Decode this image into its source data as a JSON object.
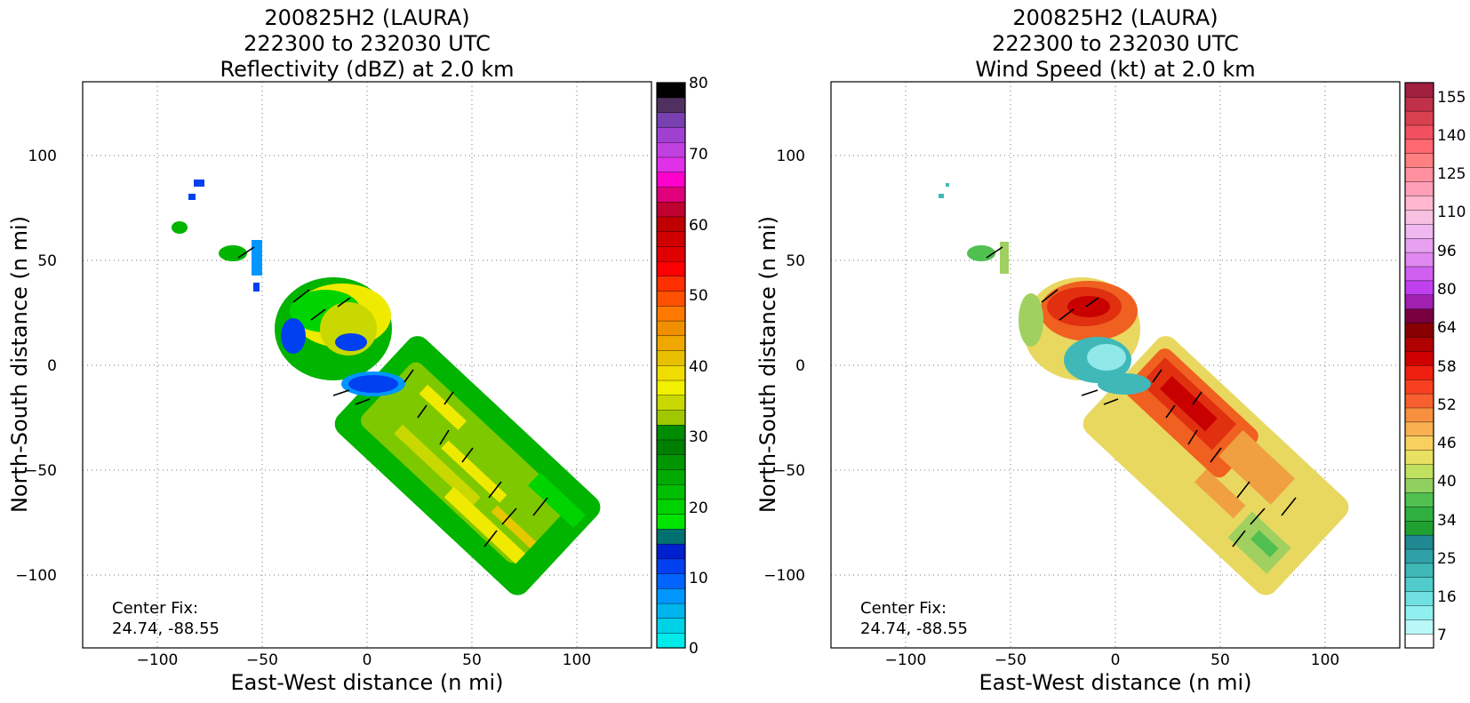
{
  "panels": [
    {
      "title_lines": [
        "200825H2 (LAURA)",
        "222300 to 232030 UTC",
        "Reflectivity (dBZ) at 2.0 km"
      ],
      "xlabel": "East-West distance (n mi)",
      "ylabel": "North-South distance (n mi)",
      "xticks": [
        "−100",
        "−50",
        "0",
        "50",
        "100"
      ],
      "yticks": [
        "100",
        "50",
        "0",
        "−50",
        "−100"
      ],
      "center_fix_label": "Center Fix:",
      "center_fix_value": "24.74, -88.55",
      "colorbar_labels": [
        "80",
        "70",
        "60",
        "50",
        "40",
        "30",
        "20",
        "10",
        "0"
      ],
      "colorbar_colors": [
        "#00eaea",
        "#00d2e6",
        "#00b4ee",
        "#0096ff",
        "#0064ff",
        "#0040f0",
        "#0020d0",
        "#007070",
        "#00e400",
        "#00d200",
        "#00be00",
        "#00aa00",
        "#009600",
        "#007e00",
        "#008c00",
        "#a0c800",
        "#c8d800",
        "#f0f000",
        "#f0dc00",
        "#e8c000",
        "#f0a800",
        "#f09000",
        "#ff7800",
        "#ff5000",
        "#ff3000",
        "#ff0000",
        "#e00000",
        "#d00000",
        "#c00000",
        "#c00030",
        "#e0007c",
        "#ff00cc",
        "#e030e8",
        "#c040e0",
        "#a040d0",
        "#7840b0",
        "#503060",
        "#000000"
      ],
      "data_colors": [
        "#00b400",
        "#00d400",
        "#7ec800",
        "#c8d800",
        "#f0ea00",
        "#e6c800",
        "#0040f0",
        "#0096ff",
        "#0080c0"
      ],
      "barb_color": "#000000"
    },
    {
      "title_lines": [
        "200825H2 (LAURA)",
        "222300 to 232030 UTC",
        "Wind Speed (kt) at 2.0 km"
      ],
      "xlabel": "East-West distance (n mi)",
      "ylabel": "North-South distance (n mi)",
      "xticks": [
        "−100",
        "−50",
        "0",
        "50",
        "100"
      ],
      "yticks": [
        "100",
        "50",
        "0",
        "−50",
        "−100"
      ],
      "center_fix_label": "Center Fix:",
      "center_fix_value": "24.74, -88.55",
      "colorbar_labels": [
        "155",
        "140",
        "125",
        "110",
        "96",
        "80",
        "64",
        "58",
        "52",
        "46",
        "40",
        "34",
        "25",
        "16",
        "7"
      ],
      "colorbar_colors": [
        "#ffffff",
        "#b8f8f8",
        "#90f0f0",
        "#70e0e0",
        "#50cccc",
        "#40b8b8",
        "#30a0a8",
        "#208890",
        "#20a030",
        "#30b040",
        "#50c050",
        "#90d060",
        "#c0e060",
        "#e8e060",
        "#f8d060",
        "#f8b050",
        "#f89040",
        "#f86030",
        "#f84020",
        "#f02010",
        "#d00000",
        "#b00000",
        "#880000",
        "#780040",
        "#a020b0",
        "#c040f0",
        "#d060f0",
        "#e088f0",
        "#e8a0f0",
        "#f0b8f0",
        "#f8c0e0",
        "#ffb8d0",
        "#ffa0b8",
        "#ff90a0",
        "#ff8080",
        "#ff6870",
        "#f05060",
        "#d84050",
        "#c03048",
        "#a02040"
      ],
      "data_colors": [
        "#e03010",
        "#f06020",
        "#c80000",
        "#f0a040",
        "#e8d860",
        "#a0d060",
        "#50c050",
        "#40b8b8",
        "#90e8e8"
      ],
      "barb_color": "#000000"
    }
  ]
}
